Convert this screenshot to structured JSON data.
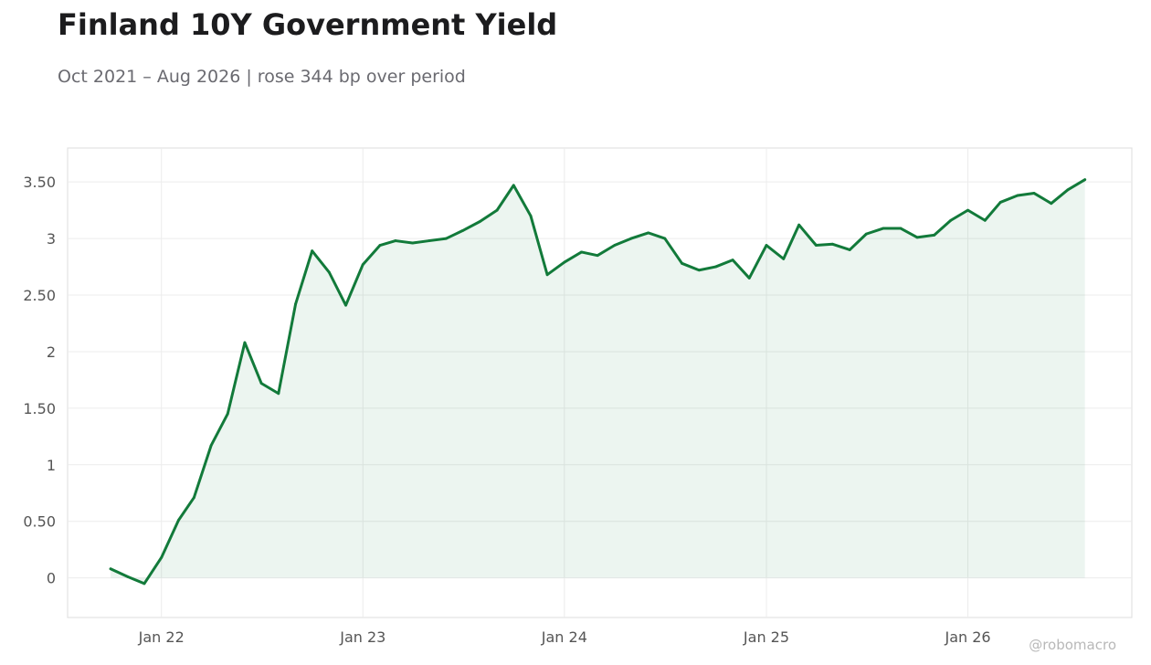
{
  "title": "Finland 10Y Government Yield",
  "subtitle": "Oct 2021 – Aug 2026 | rose 344 bp over period",
  "watermark": "@robomacro",
  "colors": {
    "line": "#127a3a",
    "fill": "#127a3a",
    "grid": "#ececec",
    "frame": "#dddddd"
  },
  "chart_data": {
    "type": "area",
    "title": "Finland 10Y Government Yield",
    "xlabel": "",
    "ylabel": "",
    "grid": true,
    "legend": "none",
    "ylim": [
      -0.35,
      3.8
    ],
    "xlim": [
      "2021-07-15",
      "2026-10-25"
    ],
    "x_ticks": [
      {
        "date": "2022-01-01",
        "label": "Jan 22"
      },
      {
        "date": "2023-01-01",
        "label": "Jan 23"
      },
      {
        "date": "2024-01-01",
        "label": "Jan 24"
      },
      {
        "date": "2025-01-01",
        "label": "Jan 25"
      },
      {
        "date": "2026-01-01",
        "label": "Jan 26"
      }
    ],
    "y_ticks": [
      {
        "value": 0,
        "label": "0"
      },
      {
        "value": 0.5,
        "label": "0.50"
      },
      {
        "value": 1,
        "label": "1"
      },
      {
        "value": 1.5,
        "label": "1.50"
      },
      {
        "value": 2,
        "label": "2"
      },
      {
        "value": 2.5,
        "label": "2.50"
      },
      {
        "value": 3,
        "label": "3"
      },
      {
        "value": 3.5,
        "label": "3.50"
      }
    ],
    "series": [
      {
        "x": [
          "2021-10-01",
          "2021-11-01",
          "2021-12-01",
          "2022-01-01",
          "2022-02-01",
          "2022-03-01",
          "2022-04-01",
          "2022-05-01",
          "2022-06-01",
          "2022-07-01",
          "2022-08-01",
          "2022-09-01",
          "2022-10-01",
          "2022-11-01",
          "2022-12-01",
          "2023-01-01",
          "2023-02-01",
          "2023-03-01",
          "2023-04-01",
          "2023-05-01",
          "2023-06-01",
          "2023-07-01",
          "2023-08-01",
          "2023-09-01",
          "2023-10-01",
          "2023-11-01",
          "2023-12-01",
          "2024-01-01",
          "2024-02-01",
          "2024-03-01",
          "2024-04-01",
          "2024-05-01",
          "2024-06-01",
          "2024-07-01",
          "2024-08-01",
          "2024-09-01",
          "2024-10-01",
          "2024-11-01",
          "2024-12-01",
          "2025-01-01",
          "2025-02-01",
          "2025-03-01",
          "2025-04-01",
          "2025-05-01",
          "2025-06-01",
          "2025-07-01",
          "2025-08-01",
          "2025-09-01",
          "2025-10-01",
          "2025-11-01",
          "2025-12-01",
          "2026-01-01",
          "2026-02-01",
          "2026-03-01",
          "2026-04-01",
          "2026-05-01",
          "2026-06-01",
          "2026-07-01",
          "2026-08-01"
        ],
        "values": [
          0.08,
          0.01,
          -0.05,
          0.18,
          0.51,
          0.71,
          1.17,
          1.45,
          2.08,
          1.72,
          1.63,
          2.42,
          2.89,
          2.7,
          2.41,
          2.77,
          2.94,
          2.98,
          2.96,
          2.98,
          3.0,
          3.07,
          3.15,
          3.25,
          3.47,
          3.2,
          2.68,
          2.79,
          2.88,
          2.85,
          2.94,
          3.0,
          3.05,
          3.0,
          2.78,
          2.72,
          2.75,
          2.81,
          2.65,
          2.94,
          2.82,
          3.12,
          2.94,
          2.95,
          2.9,
          3.04,
          3.09,
          3.09,
          3.01,
          3.03,
          3.16,
          3.25,
          3.16,
          3.32,
          3.38,
          3.4,
          3.31,
          3.43,
          3.52
        ]
      }
    ]
  }
}
